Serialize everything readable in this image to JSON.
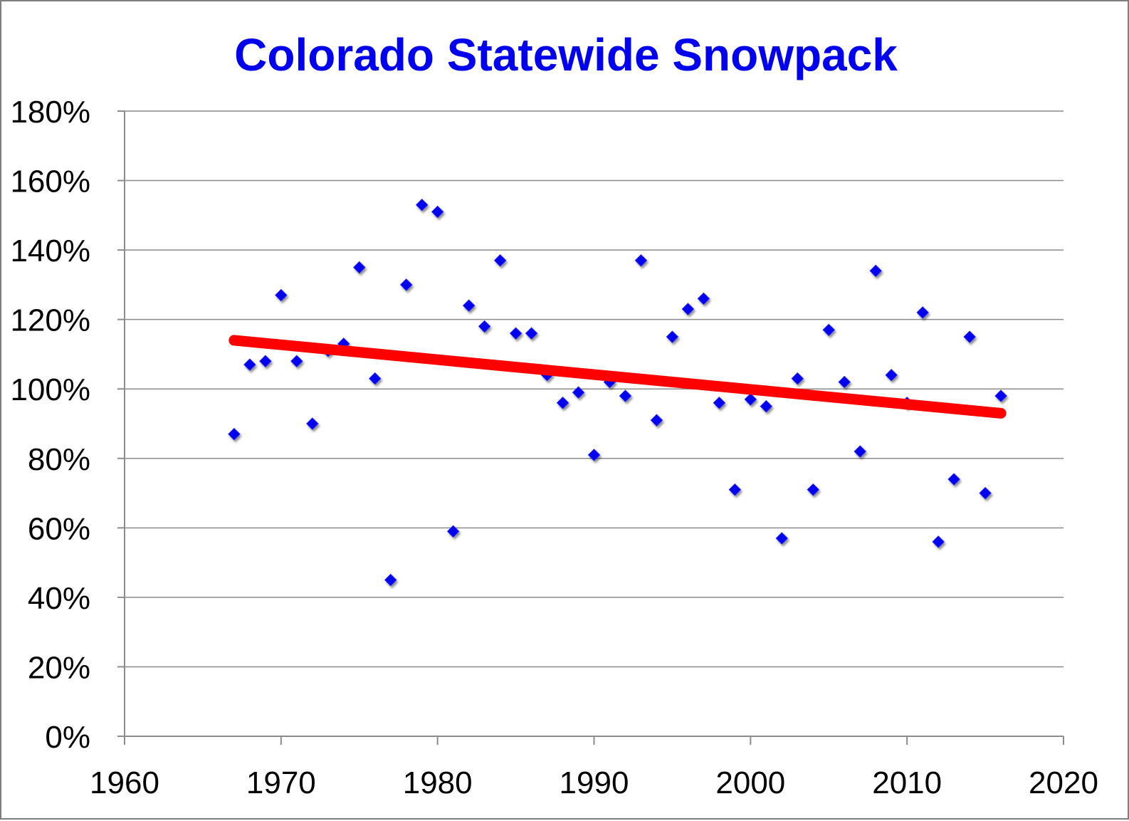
{
  "chart_data": {
    "type": "scatter",
    "title": "Colorado Statewide Snowpack",
    "xlabel": "",
    "ylabel": "",
    "xlim": [
      1960,
      2020
    ],
    "ylim": [
      0,
      180
    ],
    "x_ticks": [
      1960,
      1970,
      1980,
      1990,
      2000,
      2010,
      2020
    ],
    "y_ticks": [
      0,
      20,
      40,
      60,
      80,
      100,
      120,
      140,
      160,
      180
    ],
    "y_tick_labels": [
      "0%",
      "20%",
      "40%",
      "60%",
      "80%",
      "100%",
      "120%",
      "140%",
      "160%",
      "180%"
    ],
    "grid": true,
    "series": [
      {
        "name": "Snowpack",
        "type": "scatter",
        "marker": "diamond",
        "color": "#0000ee",
        "x": [
          1967,
          1968,
          1969,
          1970,
          1971,
          1972,
          1973,
          1974,
          1975,
          1976,
          1977,
          1978,
          1979,
          1980,
          1981,
          1982,
          1983,
          1984,
          1985,
          1986,
          1987,
          1988,
          1989,
          1990,
          1991,
          1992,
          1993,
          1994,
          1995,
          1996,
          1997,
          1998,
          1999,
          2000,
          2001,
          2002,
          2003,
          2004,
          2005,
          2006,
          2007,
          2008,
          2009,
          2010,
          2011,
          2012,
          2013,
          2014,
          2015,
          2016
        ],
        "y": [
          87,
          107,
          108,
          127,
          108,
          90,
          111,
          113,
          135,
          103,
          45,
          130,
          153,
          151,
          59,
          124,
          118,
          137,
          116,
          116,
          104,
          96,
          99,
          81,
          102,
          98,
          137,
          91,
          115,
          123,
          126,
          96,
          71,
          97,
          95,
          57,
          103,
          71,
          117,
          102,
          82,
          134,
          104,
          96,
          122,
          56,
          74,
          115,
          70,
          98
        ]
      },
      {
        "name": "Trend",
        "type": "line",
        "color": "#ff0000",
        "x": [
          1967,
          2016
        ],
        "y": [
          114,
          93
        ]
      }
    ]
  },
  "colors": {
    "title": "#0000ee",
    "gridline": "#8c8c8c",
    "axis": "#8c8c8c",
    "marker": "#0000ee",
    "trend": "#ff0000"
  }
}
